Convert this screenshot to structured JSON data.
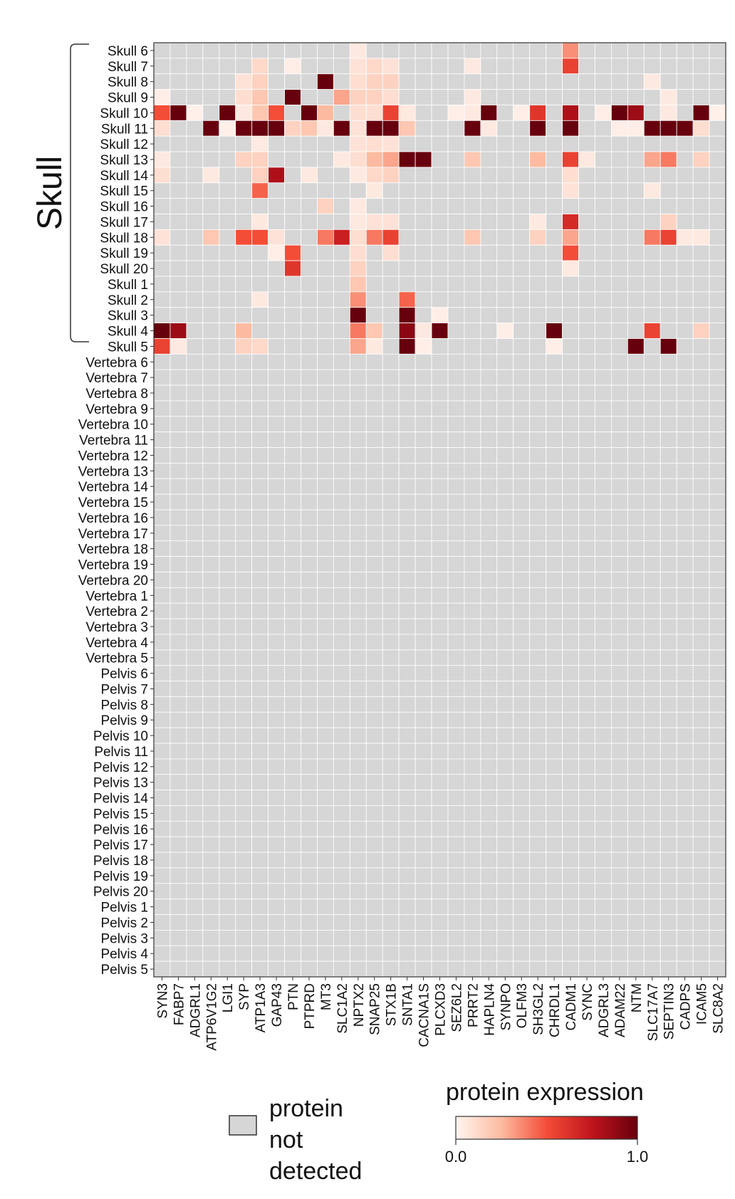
{
  "chart_data": {
    "type": "heatmap",
    "title": "",
    "xlabel": "",
    "ylabel": "",
    "group_label": "Skull",
    "columns": [
      "SYN3",
      "FABP7",
      "ADGRL1",
      "ATP6V1G2",
      "LGI1",
      "SYP",
      "ATP1A3",
      "GAP43",
      "PTN",
      "PTPRD",
      "MT3",
      "SLC1A2",
      "NPTX2",
      "SNAP25",
      "STX1B",
      "SNTA1",
      "CACNA1S",
      "PLCXD3",
      "SEZ6L2",
      "PRRT2",
      "HAPLN4",
      "SYNPO",
      "OLFM3",
      "SH3GL2",
      "CHRDL1",
      "CADM1",
      "SYNC",
      "ADGRL3",
      "ADAM22",
      "NTM",
      "SLC17A7",
      "SEPTIN3",
      "CADPS",
      "ICAM5",
      "SLC8A2"
    ],
    "rows": [
      "Skull 6",
      "Skull 7",
      "Skull 8",
      "Skull 9",
      "Skull 10",
      "Skull 11",
      "Skull 12",
      "Skull 13",
      "Skull 14",
      "Skull 15",
      "Skull 16",
      "Skull 17",
      "Skull 18",
      "Skull 19",
      "Skull 20",
      "Skull 1",
      "Skull 2",
      "Skull 3",
      "Skull 4",
      "Skull 5",
      "Vertebra 6",
      "Vertebra 7",
      "Vertebra 8",
      "Vertebra 9",
      "Vertebra 10",
      "Vertebra 11",
      "Vertebra 12",
      "Vertebra 13",
      "Vertebra 14",
      "Vertebra 15",
      "Vertebra 16",
      "Vertebra 17",
      "Vertebra 18",
      "Vertebra 19",
      "Vertebra 20",
      "Vertebra 1",
      "Vertebra 2",
      "Vertebra 3",
      "Vertebra 4",
      "Vertebra 5",
      "Pelvis 6",
      "Pelvis 7",
      "Pelvis 8",
      "Pelvis 9",
      "Pelvis 10",
      "Pelvis 11",
      "Pelvis 12",
      "Pelvis 13",
      "Pelvis 14",
      "Pelvis 15",
      "Pelvis 16",
      "Pelvis 17",
      "Pelvis 18",
      "Pelvis 19",
      "Pelvis 20",
      "Pelvis 1",
      "Pelvis 2",
      "Pelvis 3",
      "Pelvis 4",
      "Pelvis 5"
    ],
    "detected_cells": [
      [
        "Skull 6",
        "NPTX2",
        0.05
      ],
      [
        "Skull 6",
        "CADM1",
        0.35
      ],
      [
        "Skull 7",
        "ATP1A3",
        0.12
      ],
      [
        "Skull 7",
        "PTN",
        0.03
      ],
      [
        "Skull 7",
        "NPTX2",
        0.08
      ],
      [
        "Skull 7",
        "SNAP25",
        0.12
      ],
      [
        "Skull 7",
        "STX1B",
        0.08
      ],
      [
        "Skull 7",
        "PRRT2",
        0.05
      ],
      [
        "Skull 7",
        "CADM1",
        0.55
      ],
      [
        "Skull 8",
        "SYP",
        0.08
      ],
      [
        "Skull 8",
        "ATP1A3",
        0.15
      ],
      [
        "Skull 8",
        "MT3",
        1.0
      ],
      [
        "Skull 8",
        "NPTX2",
        0.1
      ],
      [
        "Skull 8",
        "SNAP25",
        0.15
      ],
      [
        "Skull 8",
        "STX1B",
        0.15
      ],
      [
        "Skull 8",
        "SLC17A7",
        0.05
      ],
      [
        "Skull 9",
        "SYN3",
        0.03
      ],
      [
        "Skull 9",
        "SYP",
        0.1
      ],
      [
        "Skull 9",
        "ATP1A3",
        0.2
      ],
      [
        "Skull 9",
        "PTN",
        1.0
      ],
      [
        "Skull 9",
        "SLC1A2",
        0.3
      ],
      [
        "Skull 9",
        "NPTX2",
        0.15
      ],
      [
        "Skull 9",
        "SNAP25",
        0.15
      ],
      [
        "Skull 9",
        "STX1B",
        0.1
      ],
      [
        "Skull 9",
        "PRRT2",
        0.05
      ],
      [
        "Skull 9",
        "SEPTIN3",
        0.05
      ],
      [
        "Skull 10",
        "SYN3",
        0.5
      ],
      [
        "Skull 10",
        "FABP7",
        1.0
      ],
      [
        "Skull 10",
        "ADGRL1",
        0.02
      ],
      [
        "Skull 10",
        "LGI1",
        1.0
      ],
      [
        "Skull 10",
        "SYP",
        0.05
      ],
      [
        "Skull 10",
        "ATP1A3",
        0.2
      ],
      [
        "Skull 10",
        "GAP43",
        0.5
      ],
      [
        "Skull 10",
        "PTPRD",
        1.0
      ],
      [
        "Skull 10",
        "MT3",
        0.25
      ],
      [
        "Skull 10",
        "NPTX2",
        0.1
      ],
      [
        "Skull 10",
        "SNAP25",
        0.1
      ],
      [
        "Skull 10",
        "STX1B",
        0.55
      ],
      [
        "Skull 10",
        "SNTA1",
        0.05
      ],
      [
        "Skull 10",
        "SEZ6L2",
        0.03
      ],
      [
        "Skull 10",
        "PRRT2",
        0.05
      ],
      [
        "Skull 10",
        "HAPLN4",
        1.0
      ],
      [
        "Skull 10",
        "OLFM3",
        0.03
      ],
      [
        "Skull 10",
        "SH3GL2",
        0.6
      ],
      [
        "Skull 10",
        "CADM1",
        0.8
      ],
      [
        "Skull 10",
        "ADGRL3",
        0.03
      ],
      [
        "Skull 10",
        "ADAM22",
        1.0
      ],
      [
        "Skull 10",
        "NTM",
        0.85
      ],
      [
        "Skull 10",
        "SEPTIN3",
        0.05
      ],
      [
        "Skull 10",
        "ICAM5",
        1.0
      ],
      [
        "Skull 10",
        "SLC8A2",
        0.02
      ],
      [
        "Skull 11",
        "SYN3",
        0.1
      ],
      [
        "Skull 11",
        "ATP6V1G2",
        1.0
      ],
      [
        "Skull 11",
        "LGI1",
        0.02
      ],
      [
        "Skull 11",
        "SYP",
        1.0
      ],
      [
        "Skull 11",
        "ATP1A3",
        1.0
      ],
      [
        "Skull 11",
        "GAP43",
        1.0
      ],
      [
        "Skull 11",
        "PTN",
        0.15
      ],
      [
        "Skull 11",
        "PTPRD",
        0.2
      ],
      [
        "Skull 11",
        "MT3",
        0.05
      ],
      [
        "Skull 11",
        "SLC1A2",
        1.0
      ],
      [
        "Skull 11",
        "NPTX2",
        0.08
      ],
      [
        "Skull 11",
        "SNAP25",
        1.0
      ],
      [
        "Skull 11",
        "STX1B",
        1.0
      ],
      [
        "Skull 11",
        "SNTA1",
        0.2
      ],
      [
        "Skull 11",
        "PRRT2",
        1.0
      ],
      [
        "Skull 11",
        "HAPLN4",
        0.05
      ],
      [
        "Skull 11",
        "SH3GL2",
        1.0
      ],
      [
        "Skull 11",
        "CADM1",
        1.0
      ],
      [
        "Skull 11",
        "ADAM22",
        0.03
      ],
      [
        "Skull 11",
        "NTM",
        0.03
      ],
      [
        "Skull 11",
        "SLC17A7",
        1.0
      ],
      [
        "Skull 11",
        "SEPTIN3",
        1.0
      ],
      [
        "Skull 11",
        "CADPS",
        1.0
      ],
      [
        "Skull 11",
        "ICAM5",
        0.1
      ],
      [
        "Skull 12",
        "ATP1A3",
        0.05
      ],
      [
        "Skull 12",
        "NPTX2",
        0.08
      ],
      [
        "Skull 12",
        "SNAP25",
        0.1
      ],
      [
        "Skull 12",
        "STX1B",
        0.08
      ],
      [
        "Skull 13",
        "SYN3",
        0.05
      ],
      [
        "Skull 13",
        "SYP",
        0.15
      ],
      [
        "Skull 13",
        "ATP1A3",
        0.15
      ],
      [
        "Skull 13",
        "SLC1A2",
        0.05
      ],
      [
        "Skull 13",
        "NPTX2",
        0.1
      ],
      [
        "Skull 13",
        "SNAP25",
        0.25
      ],
      [
        "Skull 13",
        "STX1B",
        0.3
      ],
      [
        "Skull 13",
        "SNTA1",
        1.0
      ],
      [
        "Skull 13",
        "CACNA1S",
        1.0
      ],
      [
        "Skull 13",
        "PRRT2",
        0.2
      ],
      [
        "Skull 13",
        "SH3GL2",
        0.25
      ],
      [
        "Skull 13",
        "CADM1",
        0.55
      ],
      [
        "Skull 13",
        "SYNC",
        0.05
      ],
      [
        "Skull 13",
        "SLC17A7",
        0.3
      ],
      [
        "Skull 13",
        "SEPTIN3",
        0.4
      ],
      [
        "Skull 13",
        "ICAM5",
        0.15
      ],
      [
        "Skull 14",
        "SYN3",
        0.1
      ],
      [
        "Skull 14",
        "ATP6V1G2",
        0.05
      ],
      [
        "Skull 14",
        "ATP1A3",
        0.15
      ],
      [
        "Skull 14",
        "GAP43",
        0.8
      ],
      [
        "Skull 14",
        "PTPRD",
        0.05
      ],
      [
        "Skull 14",
        "NPTX2",
        0.05
      ],
      [
        "Skull 14",
        "SNAP25",
        0.12
      ],
      [
        "Skull 14",
        "STX1B",
        0.15
      ],
      [
        "Skull 14",
        "CADM1",
        0.1
      ],
      [
        "Skull 15",
        "ATP1A3",
        0.45
      ],
      [
        "Skull 15",
        "SNAP25",
        0.05
      ],
      [
        "Skull 15",
        "CADM1",
        0.08
      ],
      [
        "Skull 15",
        "SLC17A7",
        0.05
      ],
      [
        "Skull 16",
        "MT3",
        0.15
      ],
      [
        "Skull 16",
        "NPTX2",
        0.05
      ],
      [
        "Skull 17",
        "ATP1A3",
        0.05
      ],
      [
        "Skull 17",
        "NPTX2",
        0.05
      ],
      [
        "Skull 17",
        "SNAP25",
        0.08
      ],
      [
        "Skull 17",
        "STX1B",
        0.08
      ],
      [
        "Skull 17",
        "SH3GL2",
        0.05
      ],
      [
        "Skull 17",
        "CADM1",
        0.65
      ],
      [
        "Skull 17",
        "SEPTIN3",
        0.15
      ],
      [
        "Skull 18",
        "SYN3",
        0.08
      ],
      [
        "Skull 18",
        "ATP6V1G2",
        0.2
      ],
      [
        "Skull 18",
        "SYP",
        0.5
      ],
      [
        "Skull 18",
        "ATP1A3",
        0.5
      ],
      [
        "Skull 18",
        "GAP43",
        0.08
      ],
      [
        "Skull 18",
        "MT3",
        0.4
      ],
      [
        "Skull 18",
        "SLC1A2",
        0.7
      ],
      [
        "Skull 18",
        "NPTX2",
        0.1
      ],
      [
        "Skull 18",
        "SNAP25",
        0.4
      ],
      [
        "Skull 18",
        "STX1B",
        0.55
      ],
      [
        "Skull 18",
        "PRRT2",
        0.2
      ],
      [
        "Skull 18",
        "SH3GL2",
        0.15
      ],
      [
        "Skull 18",
        "CADM1",
        0.3
      ],
      [
        "Skull 18",
        "SLC17A7",
        0.4
      ],
      [
        "Skull 18",
        "SEPTIN3",
        0.55
      ],
      [
        "Skull 18",
        "CADPS",
        0.05
      ],
      [
        "Skull 18",
        "ICAM5",
        0.05
      ],
      [
        "Skull 19",
        "GAP43",
        0.03
      ],
      [
        "Skull 19",
        "PTN",
        0.5
      ],
      [
        "Skull 19",
        "NPTX2",
        0.1
      ],
      [
        "Skull 19",
        "STX1B",
        0.1
      ],
      [
        "Skull 19",
        "CADM1",
        0.5
      ],
      [
        "Skull 20",
        "PTN",
        0.6
      ],
      [
        "Skull 20",
        "NPTX2",
        0.15
      ],
      [
        "Skull 20",
        "CADM1",
        0.05
      ],
      [
        "Skull 1",
        "NPTX2",
        0.2
      ],
      [
        "Skull 2",
        "ATP1A3",
        0.05
      ],
      [
        "Skull 2",
        "NPTX2",
        0.35
      ],
      [
        "Skull 2",
        "SNTA1",
        0.45
      ],
      [
        "Skull 3",
        "NPTX2",
        1.0
      ],
      [
        "Skull 3",
        "SNTA1",
        1.0
      ],
      [
        "Skull 3",
        "PLCXD3",
        0.03
      ],
      [
        "Skull 4",
        "SYN3",
        1.0
      ],
      [
        "Skull 4",
        "FABP7",
        0.85
      ],
      [
        "Skull 4",
        "SYP",
        0.25
      ],
      [
        "Skull 4",
        "NPTX2",
        0.4
      ],
      [
        "Skull 4",
        "SNAP25",
        0.2
      ],
      [
        "Skull 4",
        "SNTA1",
        0.9
      ],
      [
        "Skull 4",
        "CACNA1S",
        0.05
      ],
      [
        "Skull 4",
        "PLCXD3",
        1.0
      ],
      [
        "Skull 4",
        "SYNPO",
        0.03
      ],
      [
        "Skull 4",
        "CHRDL1",
        1.0
      ],
      [
        "Skull 4",
        "SLC17A7",
        0.55
      ],
      [
        "Skull 4",
        "ICAM5",
        0.15
      ],
      [
        "Skull 5",
        "SYN3",
        0.55
      ],
      [
        "Skull 5",
        "FABP7",
        0.05
      ],
      [
        "Skull 5",
        "SYP",
        0.15
      ],
      [
        "Skull 5",
        "ATP1A3",
        0.12
      ],
      [
        "Skull 5",
        "NPTX2",
        0.3
      ],
      [
        "Skull 5",
        "SNAP25",
        0.05
      ],
      [
        "Skull 5",
        "SNTA1",
        1.0
      ],
      [
        "Skull 5",
        "CACNA1S",
        0.03
      ],
      [
        "Skull 5",
        "CHRDL1",
        0.03
      ],
      [
        "Skull 5",
        "NTM",
        1.0
      ],
      [
        "Skull 5",
        "SEPTIN3",
        1.0
      ]
    ],
    "not_detected_color": "#d6d6d6",
    "color_scale": {
      "low": "#fff5f0",
      "mid": "#f44d37",
      "high": "#67000d",
      "range": [
        0.0,
        1.0
      ]
    },
    "legend": {
      "color_title": "protein expression",
      "color_min_label": "0.0",
      "color_max_label": "1.0",
      "not_detected_label": [
        "protein",
        "not",
        "detected"
      ]
    }
  }
}
